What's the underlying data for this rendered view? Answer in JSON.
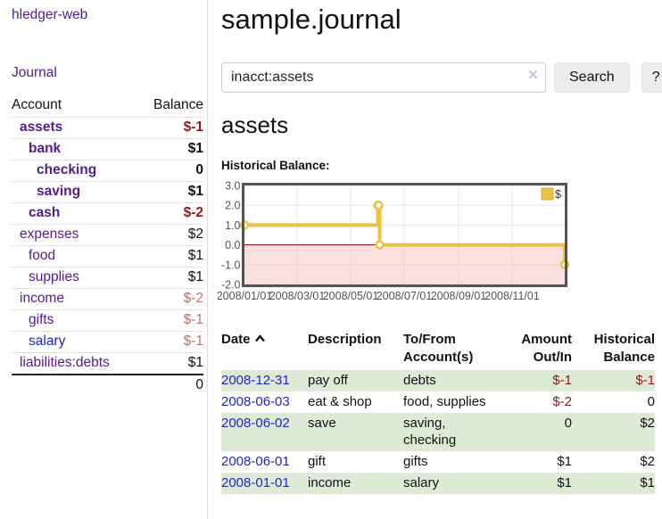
{
  "app": {
    "brand": "hledger-web"
  },
  "sidebar": {
    "nav": {
      "journal_label": "Journal"
    },
    "accounts_table": {
      "headers": {
        "account": "Account",
        "balance": "Balance"
      },
      "rows": [
        {
          "account": "assets",
          "balance": "$-1",
          "level": 1,
          "bold": true
        },
        {
          "account": "bank",
          "balance": "$1",
          "level": 2,
          "bold": true
        },
        {
          "account": "checking",
          "balance": "0",
          "level": 3,
          "bold": true
        },
        {
          "account": "saving",
          "balance": "$1",
          "level": 3,
          "bold": true
        },
        {
          "account": "cash",
          "balance": "$-2",
          "level": 2,
          "bold": true
        },
        {
          "account": "expenses",
          "balance": "$2",
          "level": 1
        },
        {
          "account": "food",
          "balance": "$1",
          "level": 2
        },
        {
          "account": "supplies",
          "balance": "$1",
          "level": 2
        },
        {
          "account": "income",
          "balance": "$-2",
          "level": 1
        },
        {
          "account": "gifts",
          "balance": "$-1",
          "level": 2
        },
        {
          "account": "salary",
          "balance": "$-1",
          "level": 2,
          "link": "blue"
        },
        {
          "account": "liabilities:debts",
          "balance": "$1",
          "level": 1
        }
      ],
      "total": "0"
    }
  },
  "header": {
    "title": "sample.journal"
  },
  "search": {
    "value": "inacct:assets",
    "clear_icon": "×",
    "button_label": "Search",
    "help_label": "?"
  },
  "account_page": {
    "title": "assets",
    "chart_label": "Historical Balance:"
  },
  "chart_data": {
    "type": "line",
    "step": true,
    "title": "Historical Balance",
    "series": [
      {
        "name": "$",
        "color": "#edc240",
        "points": [
          {
            "x": "2008/01/01",
            "y": 1
          },
          {
            "x": "2008/06/01",
            "y": 2
          },
          {
            "x": "2008/06/02",
            "y": 2
          },
          {
            "x": "2008/06/03",
            "y": 0
          },
          {
            "x": "2008/12/31",
            "y": -1
          }
        ]
      }
    ],
    "xlim": [
      "2008/01/01",
      "2008/12/31"
    ],
    "ylim": [
      -2,
      3
    ],
    "x_ticks": [
      "2008/01/01",
      "2008/03/01",
      "2008/05/01",
      "2008/07/01",
      "2008/09/01",
      "2008/11/01"
    ],
    "y_ticks": [
      3.0,
      2.0,
      1.0,
      0.0,
      -1.0,
      -2.0
    ],
    "grid": true,
    "legend": {
      "label": "$",
      "position": "top-right"
    },
    "colors": {
      "grid": "#e6e6e6",
      "border": "#545454",
      "tick_text": "#545454",
      "negative_region": "#f7c6c6",
      "zero_line": "#8b0000",
      "marker_fill": "#ffffff"
    }
  },
  "register": {
    "headers": {
      "date": "Date",
      "description": "Description",
      "accounts": "To/From Account(s)",
      "amount": "Amount Out/In",
      "balance": "Historical Balance"
    },
    "rows": [
      {
        "date": "2008-12-31",
        "description": "pay off",
        "accounts": "debts",
        "amount": "$-1",
        "balance": "$-1"
      },
      {
        "date": "2008-06-03",
        "description": "eat & shop",
        "accounts": "food, supplies",
        "amount": "$-2",
        "balance": "0"
      },
      {
        "date": "2008-06-02",
        "description": "save",
        "accounts": "saving, checking",
        "amount": "0",
        "balance": "$2"
      },
      {
        "date": "2008-06-01",
        "description": "gift",
        "accounts": "gifts",
        "amount": "$1",
        "balance": "$2"
      },
      {
        "date": "2008-01-01",
        "description": "income",
        "accounts": "salary",
        "amount": "$1",
        "balance": "$1"
      }
    ]
  },
  "colors": {
    "link_purple": "#551a8b",
    "link_blue": "#2222cc",
    "negative_strong": "#8f1a1a",
    "negative_light": "#b97272",
    "row_green": "#dcead6",
    "series_yellow": "#edc240"
  }
}
